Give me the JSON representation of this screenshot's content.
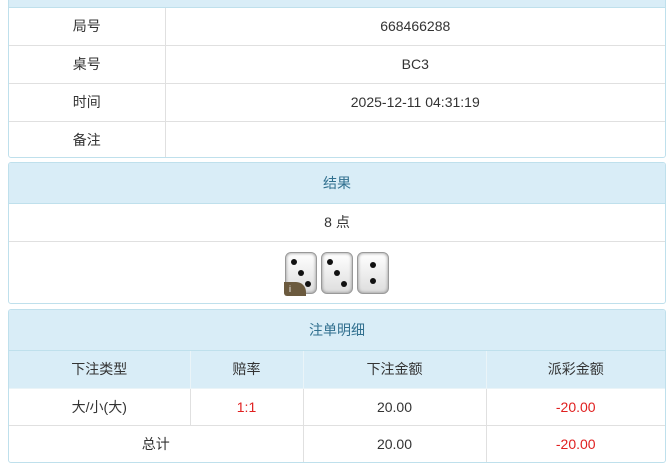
{
  "info": {
    "rows": [
      {
        "label": "局号",
        "value": "668466288"
      },
      {
        "label": "桌号",
        "value": "BC3"
      },
      {
        "label": "时间",
        "value": "2025-12-11 04:31:19"
      },
      {
        "label": "备注",
        "value": ""
      }
    ]
  },
  "result": {
    "title": "结果",
    "points": "8 点",
    "dice": [
      3,
      3,
      2
    ],
    "info_badge": "i"
  },
  "bets": {
    "title": "注单明细",
    "headers": [
      "下注类型",
      "赔率",
      "下注金额",
      "派彩金额"
    ],
    "rows": [
      {
        "type": "大/小(大)",
        "odds": "1:1",
        "amount": "20.00",
        "payout": "-20.00"
      }
    ],
    "total": {
      "label": "总计",
      "amount": "20.00",
      "payout": "-20.00"
    }
  },
  "colors": {
    "header_bg": "#d9edf7",
    "header_text": "#31708f",
    "negative": "#e02020"
  }
}
